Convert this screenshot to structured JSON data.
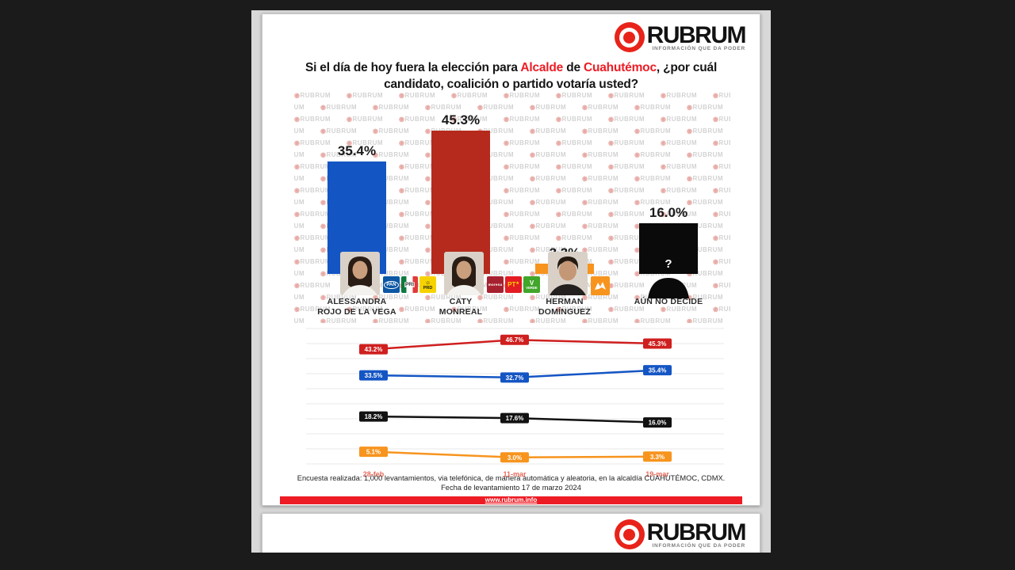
{
  "logo": {
    "brand": "RUBRUM",
    "tagline": "INFORMACIÓN QUE DA PODER",
    "red": "#e8231a"
  },
  "title": {
    "part1": "Si el día de hoy fuera la elección para ",
    "office": "Alcalde",
    "part2": " de ",
    "place": "Cuahutémoc",
    "part3": ", ¿por cuál candidato, coalición o partido votaría usted?",
    "accent_color": "#ed1c24"
  },
  "watermark": {
    "icon": "◉",
    "text": "RUBRUM"
  },
  "chart_data": [
    {
      "type": "bar",
      "categories": [
        "ALESSANDRA ROJO DE LA VEGA",
        "CATY MONREAL",
        "HERMAN DOMÍNGUEZ",
        "AÚN NO DECIDE"
      ],
      "values": [
        35.4,
        45.3,
        3.3,
        16.0
      ],
      "labels": [
        "35.4%",
        "45.3%",
        "3.3%",
        "16.0%"
      ],
      "colors": [
        "#1455c4",
        "#b52a1d",
        "#f7941e",
        "#0a0a0a"
      ],
      "ylim": [
        0,
        50
      ]
    },
    {
      "type": "line",
      "x": [
        "28-feb",
        "11-mar",
        "19-mar"
      ],
      "series": [
        {
          "name": "Caty Monreal",
          "color": "#cf1f1f",
          "values": [
            43.2,
            46.7,
            45.3
          ],
          "labels": [
            "43.2%",
            "46.7%",
            "45.3%"
          ]
        },
        {
          "name": "Alessandra Rojo de la Vega",
          "color": "#1455c4",
          "values": [
            33.5,
            32.7,
            35.4
          ],
          "labels": [
            "33.5%",
            "32.7%",
            "35.4%"
          ]
        },
        {
          "name": "Aún no decide",
          "color": "#121212",
          "values": [
            18.2,
            17.6,
            16.0
          ],
          "labels": [
            "18.2%",
            "17.6%",
            "16.0%"
          ]
        },
        {
          "name": "Herman Domínguez",
          "color": "#f7941e",
          "values": [
            5.1,
            3.0,
            3.3
          ],
          "labels": [
            "5.1%",
            "3.0%",
            "3.3%"
          ]
        }
      ],
      "ylim": [
        0,
        52
      ],
      "grid": true,
      "x_label_color": "#e8695a"
    }
  ],
  "candidates": [
    {
      "name_lines": [
        "ALESSANDRA",
        "ROJO DE LA VEGA"
      ],
      "photo": "woman",
      "parties": [
        "PAN",
        "PRI",
        "PRD"
      ]
    },
    {
      "name_lines": [
        "CATY",
        "MONREAL"
      ],
      "photo": "woman",
      "parties": [
        "morena",
        "PT",
        "VERDE"
      ]
    },
    {
      "name_lines": [
        "HERMAN",
        "DOMÍNGUEZ"
      ],
      "photo": "man",
      "parties": [
        "MC"
      ]
    },
    {
      "name_lines": [
        "AÚN NO DECIDE"
      ],
      "photo": "silhouette",
      "parties": [],
      "question_mark": "?"
    }
  ],
  "parties": {
    "PAN": {
      "label": "PAN",
      "bg": "#0b57a4",
      "fg": "#ffffff"
    },
    "PRI": {
      "label": "PRI",
      "bg": "#ffffff",
      "fg": "#3a3a3a",
      "stripes": [
        "#0c7a3c",
        "#ffffff",
        "#e03a3a"
      ]
    },
    "PRD": {
      "label": "PRD",
      "bg": "#f6d300",
      "fg": "#1a1a1a"
    },
    "morena": {
      "label": "morena",
      "bg": "#a6212f",
      "fg": "#ffffff"
    },
    "PT": {
      "label": "PT",
      "bg": "#e31c23",
      "fg": "#ffd500",
      "star": "★"
    },
    "VERDE": {
      "label": "VERDE",
      "bg": "#41a62a",
      "fg": "#ffffff"
    },
    "MC": {
      "label": "MC",
      "bg": "#f7941e",
      "fg": "#ffffff"
    }
  },
  "footnote": {
    "line1": "Encuesta realizada: 1,000 levantamientos, via telefónica, de manera automática y aleatoria, en la alcaldía CUAHUTÉMOC, CDMX.",
    "line2": "Fecha de levantamiento 17 de marzo 2024"
  },
  "footer": {
    "url": "www.rubrum.info",
    "bar_color": "#ed1c24"
  }
}
